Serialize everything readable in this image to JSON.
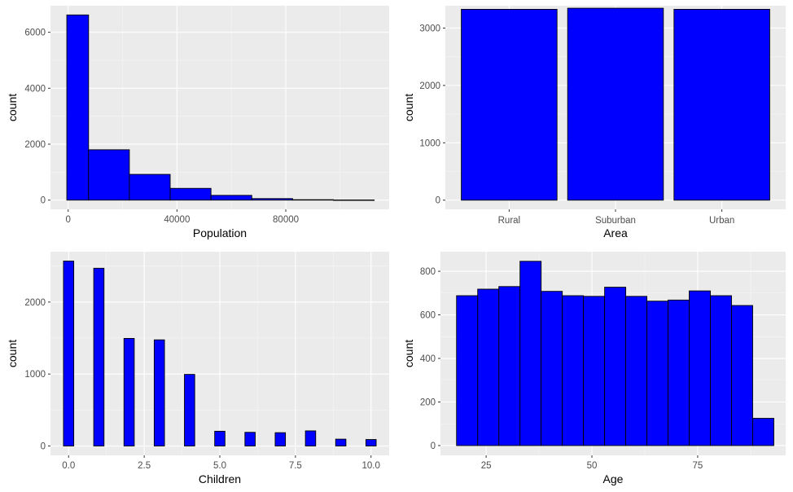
{
  "colors": {
    "panel_bg": "#EBEBEB",
    "grid_major": "#FFFFFF",
    "grid_minor": "#F5F5F5",
    "bar_fill": "#0000FF",
    "bar_stroke": "#000000",
    "tick_text": "#4D4D4D"
  },
  "chart_data": [
    {
      "type": "bar",
      "subtype": "histogram",
      "xlabel": "Population",
      "ylabel": "count",
      "xlim": [
        -6500,
        118000
      ],
      "ylim": [
        -330,
        6950
      ],
      "xticks": [
        0,
        40000,
        80000
      ],
      "xtick_labels": [
        "0",
        "40000",
        "80000"
      ],
      "yticks": [
        0,
        2000,
        4000,
        6000
      ],
      "ytick_labels": [
        "0",
        "2000",
        "4000",
        "6000"
      ],
      "grid": true,
      "bins": [
        {
          "x0": -500,
          "x1": 7500,
          "count": 6620
        },
        {
          "x0": 7500,
          "x1": 22500,
          "count": 1800
        },
        {
          "x0": 22500,
          "x1": 37500,
          "count": 920
        },
        {
          "x0": 37500,
          "x1": 52500,
          "count": 420
        },
        {
          "x0": 52500,
          "x1": 67500,
          "count": 170
        },
        {
          "x0": 67500,
          "x1": 82500,
          "count": 55
        },
        {
          "x0": 82500,
          "x1": 97500,
          "count": 15
        },
        {
          "x0": 97500,
          "x1": 112500,
          "count": 5
        }
      ]
    },
    {
      "type": "bar",
      "xlabel": "Area",
      "ylabel": "count",
      "categories": [
        "Rural",
        "Suburban",
        "Urban"
      ],
      "values": [
        3327,
        3346,
        3327
      ],
      "ylim": [
        -160,
        3390
      ],
      "yticks": [
        0,
        1000,
        2000,
        3000
      ],
      "ytick_labels": [
        "0",
        "1000",
        "2000",
        "3000"
      ],
      "grid": true
    },
    {
      "type": "bar",
      "subtype": "histogram",
      "xlabel": "Children",
      "ylabel": "count",
      "xlim": [
        -0.6,
        10.6
      ],
      "ylim": [
        -130,
        2700
      ],
      "xticks": [
        0,
        2.5,
        5,
        7.5,
        10
      ],
      "xtick_labels": [
        "0.0",
        "2.5",
        "5.0",
        "7.5",
        "10.0"
      ],
      "yticks": [
        0,
        1000,
        2000
      ],
      "ytick_labels": [
        "0",
        "1000",
        "2000"
      ],
      "grid": true,
      "bins": [
        {
          "x0": -0.17,
          "x1": 0.17,
          "count": 2570
        },
        {
          "x0": 0.83,
          "x1": 1.17,
          "count": 2470
        },
        {
          "x0": 1.83,
          "x1": 2.17,
          "count": 1495
        },
        {
          "x0": 2.83,
          "x1": 3.17,
          "count": 1475
        },
        {
          "x0": 3.83,
          "x1": 4.17,
          "count": 995
        },
        {
          "x0": 4.83,
          "x1": 5.17,
          "count": 205
        },
        {
          "x0": 5.83,
          "x1": 6.17,
          "count": 190
        },
        {
          "x0": 6.83,
          "x1": 7.17,
          "count": 185
        },
        {
          "x0": 7.83,
          "x1": 8.17,
          "count": 210
        },
        {
          "x0": 8.83,
          "x1": 9.17,
          "count": 95
        },
        {
          "x0": 9.83,
          "x1": 10.17,
          "count": 90
        }
      ]
    },
    {
      "type": "bar",
      "subtype": "histogram",
      "xlabel": "Age",
      "ylabel": "count",
      "xlim": [
        14.2,
        95.8
      ],
      "ylim": [
        -45,
        890
      ],
      "xticks": [
        25,
        50,
        75
      ],
      "xtick_labels": [
        "25",
        "50",
        "75"
      ],
      "yticks": [
        0,
        200,
        400,
        600,
        800
      ],
      "ytick_labels": [
        "0",
        "200",
        "400",
        "600",
        "800"
      ],
      "grid": true,
      "bins": [
        {
          "x0": 18.0,
          "x1": 23.0,
          "count": 688
        },
        {
          "x0": 23.0,
          "x1": 28.0,
          "count": 718
        },
        {
          "x0": 28.0,
          "x1": 33.0,
          "count": 730
        },
        {
          "x0": 33.0,
          "x1": 38.0,
          "count": 846
        },
        {
          "x0": 38.0,
          "x1": 43.0,
          "count": 708
        },
        {
          "x0": 43.0,
          "x1": 48.0,
          "count": 688
        },
        {
          "x0": 48.0,
          "x1": 53.0,
          "count": 685
        },
        {
          "x0": 53.0,
          "x1": 58.0,
          "count": 727
        },
        {
          "x0": 58.0,
          "x1": 63.0,
          "count": 685
        },
        {
          "x0": 63.0,
          "x1": 68.0,
          "count": 663
        },
        {
          "x0": 68.0,
          "x1": 73.0,
          "count": 668
        },
        {
          "x0": 73.0,
          "x1": 78.0,
          "count": 710
        },
        {
          "x0": 78.0,
          "x1": 83.0,
          "count": 688
        },
        {
          "x0": 83.0,
          "x1": 88.0,
          "count": 643
        },
        {
          "x0": 88.0,
          "x1": 93.0,
          "count": 125
        }
      ]
    }
  ]
}
